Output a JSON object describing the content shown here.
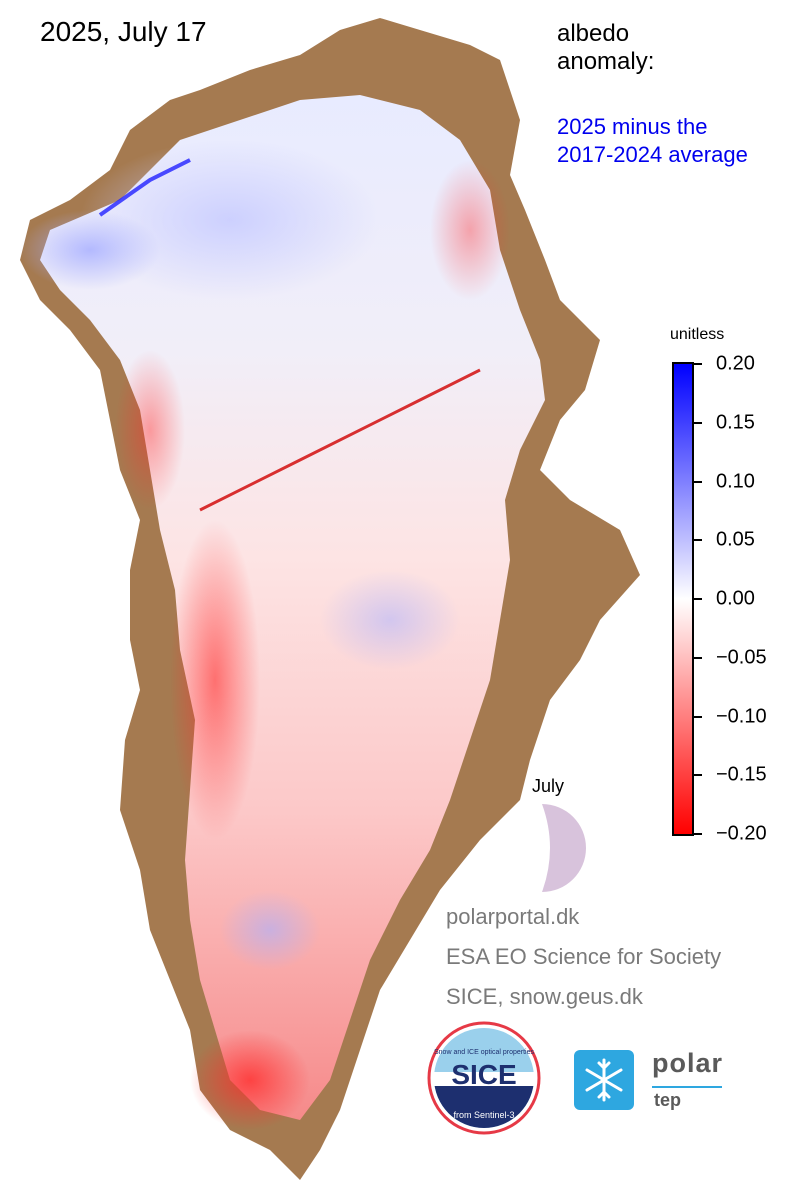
{
  "header": {
    "title": "2025, July 17",
    "label": "albedo\nanomaly:",
    "subtitle": "2025 minus the\n2017-2024 average"
  },
  "colorbar": {
    "units": "unitless",
    "ticks": [
      "0.20",
      "0.15",
      "0.10",
      "0.05",
      "0.00",
      "−0.05",
      "−0.10",
      "−0.15",
      "−0.20"
    ],
    "max": 0.2,
    "min": -0.2,
    "colors": {
      "high": "#0000ff",
      "neutral": "#ffffff",
      "low": "#ff0000"
    }
  },
  "month_indicator": {
    "label": "July",
    "color": "#d8c3dc"
  },
  "credits": [
    "polarportal.dk",
    "ESA EO Science for Society",
    "SICE, snow.geus.dk"
  ],
  "logos": {
    "sice": {
      "top_text": "Snow and ICE optical properties",
      "name": "SICE",
      "bottom_text": "from Sentinel-3"
    },
    "polartep": {
      "word1": "polar",
      "word2": "tep",
      "icon": "snowflake-icon"
    }
  },
  "map": {
    "land_color": "#a57a50",
    "description_colors": {
      "ice_red": "#ff4a4a",
      "ice_blue": "#8c96ff"
    }
  }
}
